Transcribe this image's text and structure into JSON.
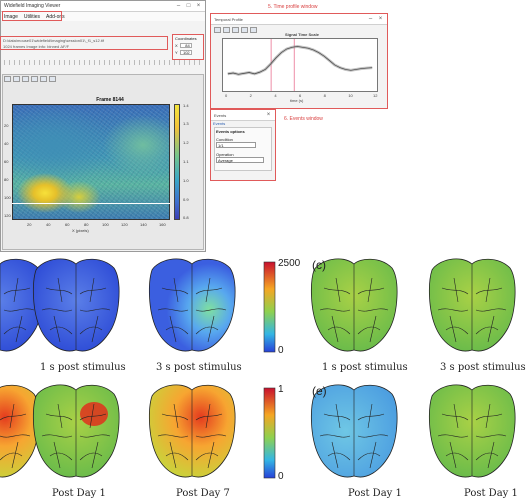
{
  "main_window": {
    "title": "Widefield Imaging Viewer",
    "menu": [
      "Image",
      "Utilities",
      "Add-ons"
    ],
    "path_text": "D:\\data\\mouse01\\widefield\\imaging\\session01\\_f1_s12.tif",
    "path_text2": "1024 frames  Image info: binned  ΔF/F",
    "coord_panel": {
      "title": "Coordinates",
      "x_label": "X",
      "x_value": "84",
      "y_label": "Y",
      "y_value": "102"
    },
    "frame_title": "Frame 8144",
    "x_axis_label": "X (pixels)",
    "x_ticks": [
      "20",
      "40",
      "60",
      "80",
      "100",
      "120",
      "140",
      "160"
    ],
    "y_ticks": [
      "20",
      "40",
      "60",
      "80",
      "100",
      "120"
    ],
    "colorbar_ticks": [
      "1.4",
      "1.3",
      "1.2",
      "1.1",
      "1.0",
      "0.9",
      "0.8"
    ]
  },
  "time_profile": {
    "window_title": "Temporal Profile",
    "callout": "5. Time profile window",
    "plot_title": "Signal Time Scale",
    "x_label": "time (s)",
    "x_ticks": [
      "0",
      "2",
      "4",
      "6",
      "8",
      "10",
      "12"
    ],
    "trace_values": [
      0.3,
      0.32,
      0.29,
      0.31,
      0.33,
      0.3,
      0.34,
      0.4,
      0.52,
      0.66,
      0.78,
      0.86,
      0.9,
      0.92,
      0.9,
      0.88,
      0.84,
      0.78,
      0.7,
      0.6,
      0.5,
      0.44,
      0.4,
      0.38,
      0.4,
      0.42,
      0.43,
      0.44
    ]
  },
  "events": {
    "window_title": "Events",
    "callout": "6. Events window",
    "tab": "Events",
    "group_title": "Events options",
    "condition_label": "Condition",
    "condition_value": "1/1",
    "operation_label": "Operation",
    "operation_value": "Average"
  },
  "brain_panels": {
    "captions_row1": [
      "1 s post stimulus",
      "3 s post stimulus",
      "1 s post stimulus",
      "3 s post stimulus"
    ],
    "captions_row2": [
      "Post Day 1",
      "Post Day 7",
      "Post Day 1",
      "Post Day 1"
    ],
    "panel_letters": [
      "(c)",
      "(e)"
    ],
    "colorbar1_ticks": [
      "2500",
      "0"
    ],
    "colorbar2_ticks": [
      "1",
      "0"
    ]
  }
}
